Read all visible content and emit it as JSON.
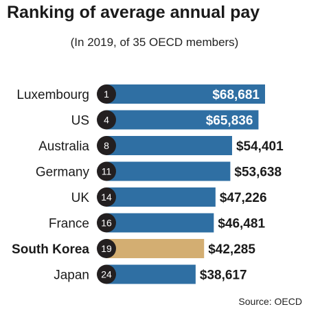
{
  "chart_data": {
    "type": "bar",
    "orientation": "horizontal",
    "title": "Ranking of average annual pay",
    "subtitle": "(In 2019, of 35 OECD members)",
    "source": "Source: OECD",
    "xlim": [
      0,
      70000
    ],
    "grid": false,
    "categories": [
      "Luxembourg",
      "US",
      "Australia",
      "Germany",
      "UK",
      "France",
      "South Korea",
      "Japan"
    ],
    "ranks": [
      "1",
      "4",
      "8",
      "11",
      "14",
      "16",
      "19",
      "24"
    ],
    "values": [
      68681,
      65836,
      54401,
      53638,
      47226,
      46481,
      42285,
      38617
    ],
    "value_labels": [
      "$68,681",
      "$65,836",
      "$54,401",
      "$53,638",
      "$47,226",
      "$46,481",
      "$42,285",
      "$38,617"
    ],
    "highlight": "South Korea",
    "colors": {
      "bar": "#2f6fa3",
      "highlight_bar": "#d3ae72",
      "rank_badge": "#231f20",
      "value_inside": "#ffffff",
      "value_outside": "#1a1a1a"
    }
  }
}
